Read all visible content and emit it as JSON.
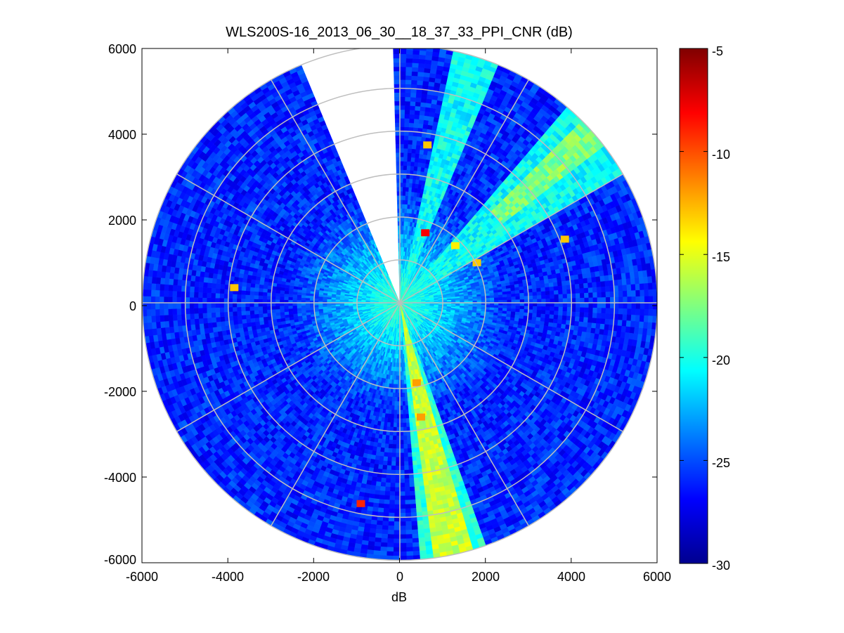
{
  "chart_data": {
    "type": "heatmap",
    "subtype": "polar-ppi",
    "title": "WLS200S-16_2013_06_30__18_37_33_PPI_CNR (dB)",
    "xlabel": "dB",
    "ylabel": "",
    "xlim": [
      -6000,
      6000
    ],
    "ylim": [
      -6000,
      6000
    ],
    "x_ticks": [
      "-6000",
      "-4000",
      "-2000",
      "0",
      "2000",
      "4000",
      "6000"
    ],
    "y_ticks": [
      "6000",
      "4000",
      "2000",
      "0",
      "-2000",
      "-4000",
      "-6000"
    ],
    "max_range": 6000,
    "range_rings": [
      1000,
      2000,
      3000,
      4000,
      5000,
      6000
    ],
    "spokes_deg": [
      0,
      30,
      60,
      90,
      120,
      150,
      180,
      210,
      240,
      270,
      300,
      330
    ],
    "missing_sector_deg": [
      337,
      359
    ],
    "colorbar": {
      "label": "",
      "min": -30,
      "max": -5,
      "ticks": [
        "-5",
        "-10",
        "-15",
        "-20",
        "-25",
        "-30"
      ],
      "colormap": "jet"
    },
    "field_notes": {
      "near_range_cnr": -19,
      "far_range_cnr": -26,
      "high_cnr_beam_azimuth_deg": 168,
      "high_cnr_beam_value": -15
    },
    "hotspots": [
      {
        "x": 600,
        "y": 1700,
        "cnr": -8
      },
      {
        "x": 650,
        "y": 3750,
        "cnr": -13
      },
      {
        "x": 3850,
        "y": 1550,
        "cnr": -13
      },
      {
        "x": -3850,
        "y": 420,
        "cnr": -13
      },
      {
        "x": -900,
        "y": -4620,
        "cnr": -9
      },
      {
        "x": 500,
        "y": -2600,
        "cnr": -12
      },
      {
        "x": 400,
        "y": -1800,
        "cnr": -12
      },
      {
        "x": 1300,
        "y": 1400,
        "cnr": -14
      },
      {
        "x": 1800,
        "y": 1000,
        "cnr": -13
      }
    ]
  }
}
